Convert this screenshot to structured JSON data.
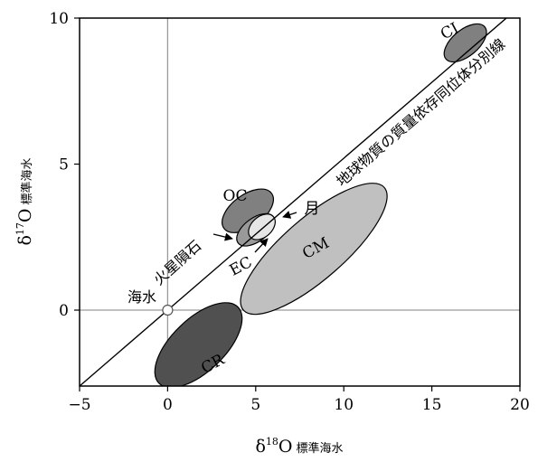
{
  "chart_data": {
    "type": "scatter",
    "title": "",
    "xlabel": {
      "base": "δ",
      "sup": "18",
      "rest": "O",
      "sub": "標準海水"
    },
    "ylabel": {
      "base": "δ",
      "sup": "17",
      "rest": "O",
      "sub": "標準海水"
    },
    "xlim": [
      -5,
      20
    ],
    "ylim": [
      -2.6,
      10
    ],
    "x_ticks": [
      -5,
      0,
      5,
      10,
      15,
      20
    ],
    "x_tick_labels": [
      "−5",
      "0",
      "5",
      "10",
      "15",
      "20"
    ],
    "y_ticks": [
      0,
      5,
      10
    ],
    "y_tick_labels": [
      "0",
      "5",
      "10"
    ],
    "reference_lines": [
      0
    ],
    "fractionation_line": {
      "label": "地球物質の質量依存同位体分別線",
      "slope": 0.52,
      "intercept": 0
    },
    "seawater": {
      "label": "海水",
      "x": 0,
      "y": 0
    },
    "regions": [
      {
        "name": "CI",
        "label": "CI",
        "x1": 15.8,
        "y1": 8.6,
        "x2": 18.0,
        "y2": 9.7,
        "minor": 0.45,
        "color": "#808080"
      },
      {
        "name": "OC",
        "label": "OC",
        "x1": 3.2,
        "y1": 2.8,
        "x2": 5.9,
        "y2": 4.0,
        "minor": 0.55,
        "color": "#808080"
      },
      {
        "name": "EC",
        "label": "EC",
        "x1": 4.0,
        "y1": 2.3,
        "x2": 6.0,
        "y2": 3.2,
        "minor": 0.4,
        "color": "#999999"
      },
      {
        "name": "Moon",
        "label": "月",
        "x1": 4.7,
        "y1": 2.5,
        "x2": 6.0,
        "y2": 3.2,
        "minor": 0.35,
        "color": "#e6e6e6"
      },
      {
        "name": "CM",
        "label": "CM",
        "x1": 4.3,
        "y1": 0.0,
        "x2": 12.3,
        "y2": 4.2,
        "minor": 1.05,
        "color": "#c0c0c0"
      },
      {
        "name": "CR",
        "label": "CR",
        "x1": -0.5,
        "y1": -2.5,
        "x2": 4.0,
        "y2": 0.1,
        "minor": 0.9,
        "color": "#505050"
      }
    ],
    "annotations": [
      {
        "name": "mars",
        "label": "火星隕石"
      }
    ],
    "grid": false,
    "legend": "none"
  }
}
